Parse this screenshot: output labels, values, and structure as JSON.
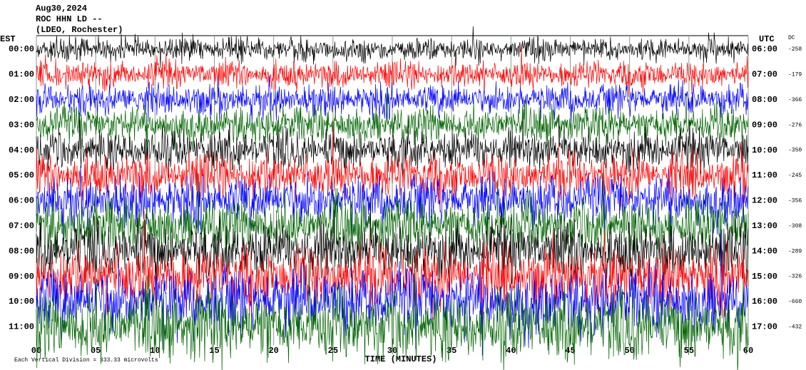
{
  "chart_data": {
    "type": "helicorder",
    "title_lines": [
      "Aug30,2024",
      "ROC HHN LD --",
      "(LDEO, Rochester)"
    ],
    "left_header": "EST",
    "right_header": "UTC",
    "dc_header": "DC",
    "xlabel": "TIME (MINUTES)",
    "footer": "Each Vertical Division =  333.33 microvolts",
    "xlim": [
      0,
      60
    ],
    "xticks": [
      {
        "value": 0,
        "label": "00"
      },
      {
        "value": 5,
        "label": "05"
      },
      10,
      15,
      20,
      25,
      30,
      35,
      40,
      45,
      50,
      55,
      60
    ],
    "rows": [
      {
        "est": "00:00",
        "utc": "06:00",
        "dc": -258,
        "color": "#000000"
      },
      {
        "est": "01:00",
        "utc": "07:00",
        "dc": -179,
        "color": "#ff0000"
      },
      {
        "est": "02:00",
        "utc": "08:00",
        "dc": -366,
        "color": "#0000ff"
      },
      {
        "est": "03:00",
        "utc": "09:00",
        "dc": -276,
        "color": "#006400"
      },
      {
        "est": "04:00",
        "utc": "10:00",
        "dc": -350,
        "color": "#000000"
      },
      {
        "est": "05:00",
        "utc": "11:00",
        "dc": -245,
        "color": "#ff0000"
      },
      {
        "est": "06:00",
        "utc": "12:00",
        "dc": -356,
        "color": "#0000ff"
      },
      {
        "est": "07:00",
        "utc": "13:00",
        "dc": -308,
        "color": "#006400"
      },
      {
        "est": "08:00",
        "utc": "14:00",
        "dc": -289,
        "color": "#000000"
      },
      {
        "est": "09:00",
        "utc": "15:00",
        "dc": -326,
        "color": "#ff0000"
      },
      {
        "est": "10:00",
        "utc": "16:00",
        "dc": -660,
        "color": "#0000ff"
      },
      {
        "est": "11:00",
        "utc": "17:00",
        "dc": -432,
        "color": "#006400"
      }
    ]
  }
}
